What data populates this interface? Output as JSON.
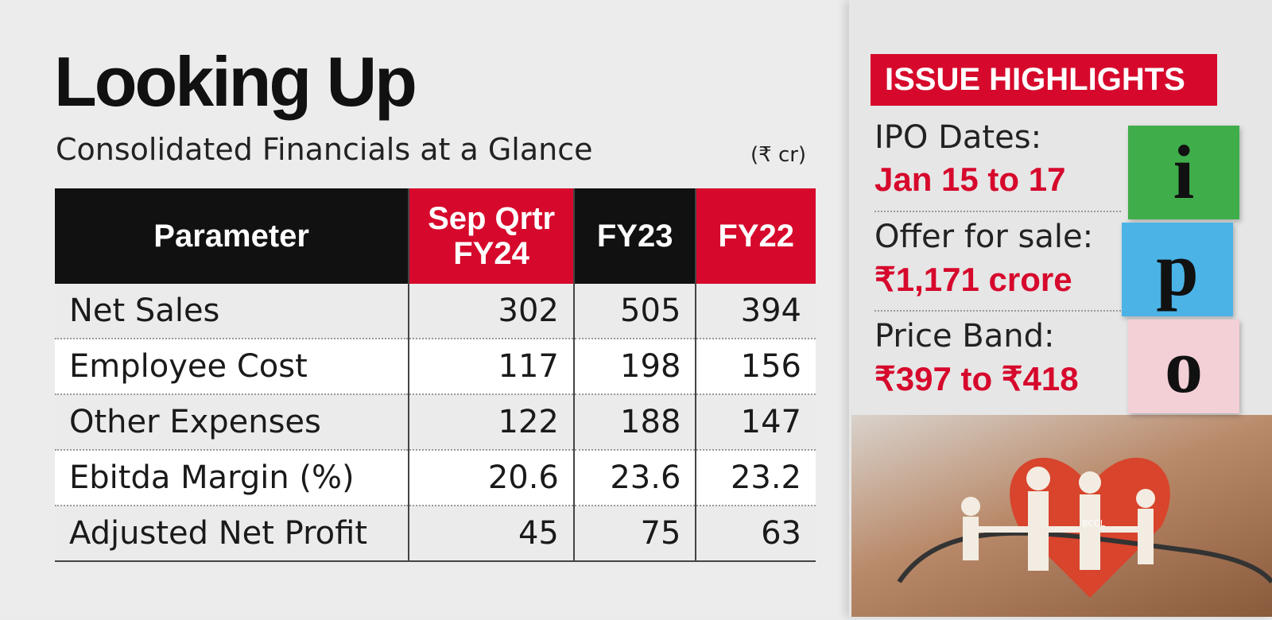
{
  "header": {
    "title": "Looking Up",
    "subtitle": "Consolidated Financials at a Glance",
    "unit": "(₹ cr)"
  },
  "table": {
    "columns": [
      "Parameter",
      "Sep Qrtr FY24",
      "FY23",
      "FY22"
    ],
    "rows": [
      [
        "Net Sales",
        "302",
        "505",
        "394"
      ],
      [
        "Employee Cost",
        "117",
        "198",
        "156"
      ],
      [
        "Other Expenses",
        "122",
        "188",
        "147"
      ],
      [
        "Ebitda Margin (%)",
        "20.6",
        "23.6",
        "23.2"
      ],
      [
        "Adjusted Net Profit",
        "45",
        "75",
        "63"
      ]
    ]
  },
  "sidebar": {
    "heading": "ISSUE HIGHLIGHTS",
    "items": [
      {
        "label": "IPO Dates:",
        "value": "Jan 15 to 17"
      },
      {
        "label": "Offer for sale:",
        "value": "₹1,171 crore"
      },
      {
        "label": "Price Band:",
        "value": "₹397 to ₹418"
      }
    ],
    "ipo_blocks": [
      "i",
      "p",
      "o"
    ],
    "photo_credit": "BCCL"
  }
}
